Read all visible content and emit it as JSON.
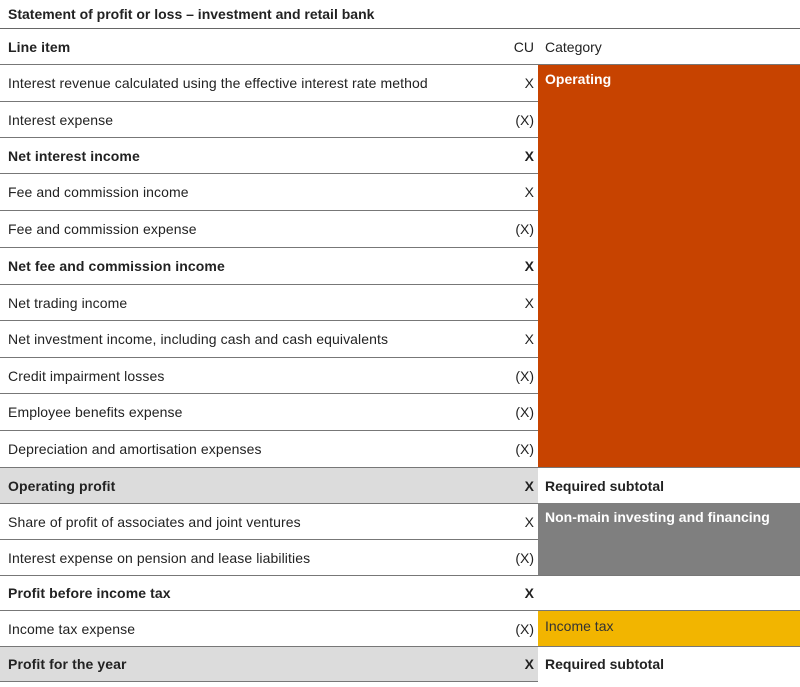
{
  "title": "Statement of profit or loss – investment and retail bank",
  "header": {
    "line_item": "Line item",
    "cu": "CU",
    "category": "Category"
  },
  "rows": [
    {
      "item": "Interest revenue calculated using the effective interest rate method",
      "cu": "X"
    },
    {
      "item": "Interest expense",
      "cu": "(X)"
    },
    {
      "item": "Net interest income",
      "cu": "X"
    },
    {
      "item": "Fee and commission income",
      "cu": "X"
    },
    {
      "item": "Fee and commission expense",
      "cu": "(X)"
    },
    {
      "item": "Net fee and commission income",
      "cu": "X"
    },
    {
      "item": "Net trading income",
      "cu": "X"
    },
    {
      "item": "Net investment income, including cash and cash equivalents",
      "cu": "X"
    },
    {
      "item": "Credit impairment losses",
      "cu": "(X)"
    },
    {
      "item": "Employee benefits expense",
      "cu": "(X)"
    },
    {
      "item": "Depreciation and amortisation expenses",
      "cu": "(X)"
    },
    {
      "item": "Operating profit",
      "cu": "X",
      "category": "Required subtotal"
    },
    {
      "item": "Share of profit of associates and joint ventures",
      "cu": "X"
    },
    {
      "item": "Interest expense on pension and lease liabilities",
      "cu": "(X)"
    },
    {
      "item": "Profit before income tax",
      "cu": "X"
    },
    {
      "item": "Income tax expense",
      "cu": "(X)"
    },
    {
      "item": "Profit for the year",
      "cu": "X",
      "category": "Required subtotal"
    }
  ],
  "categories": {
    "operating": "Operating",
    "non_main": "Non-main investing and financing",
    "income_tax": "Income tax"
  },
  "colors": {
    "operating": "#c74300",
    "non_main": "#7f7f7f",
    "income_tax": "#f2b500",
    "subtotal_shade": "#dcdcdc"
  }
}
